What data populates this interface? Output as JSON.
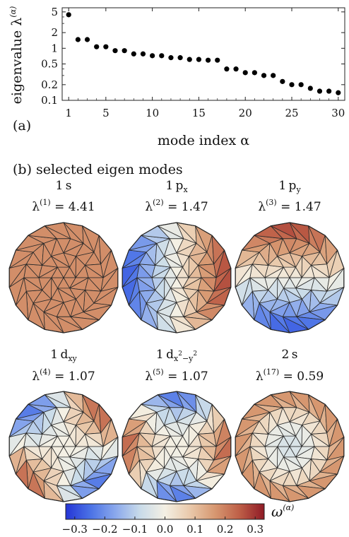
{
  "panel_a": {
    "label": "(a)",
    "chart_data": {
      "type": "scatter",
      "xlabel": "mode index α",
      "ylabel": "eigenvalue λ",
      "ylabel_sup": "(α)",
      "xlim": [
        0.3,
        30.7
      ],
      "ylim": [
        0.1,
        6
      ],
      "yscale": "log",
      "xticks": [
        1,
        5,
        10,
        15,
        20,
        25,
        30
      ],
      "yticks": [
        0.1,
        0.2,
        0.5,
        1,
        2,
        5
      ],
      "ytick_labels": [
        "0.1",
        "0.2",
        "0.5",
        "1",
        "2",
        "5"
      ],
      "x": [
        1,
        2,
        3,
        4,
        5,
        6,
        7,
        8,
        9,
        10,
        11,
        12,
        13,
        14,
        15,
        16,
        17,
        18,
        19,
        20,
        21,
        22,
        23,
        24,
        25,
        26,
        27,
        28,
        29,
        30
      ],
      "y": [
        4.41,
        1.47,
        1.47,
        1.07,
        1.07,
        0.9,
        0.9,
        0.78,
        0.78,
        0.72,
        0.72,
        0.66,
        0.66,
        0.61,
        0.61,
        0.59,
        0.59,
        0.4,
        0.4,
        0.34,
        0.34,
        0.3,
        0.3,
        0.23,
        0.2,
        0.2,
        0.17,
        0.15,
        0.15,
        0.14
      ],
      "grid": false,
      "frame": "box"
    }
  },
  "panel_b": {
    "title": "(b) selected eigen modes",
    "modes": [
      {
        "name": "1 s",
        "main": "1",
        "orb": "s",
        "sub": "",
        "sup": "",
        "lam_sup": "(1)",
        "lam_value": "4.41",
        "pattern": "uniform"
      },
      {
        "name": "1 p_x",
        "main": "1",
        "orb": "p",
        "sub": "x",
        "sup": "",
        "lam_sup": "(2)",
        "lam_value": "1.47",
        "pattern": "px"
      },
      {
        "name": "1 p_y",
        "main": "1",
        "orb": "p",
        "sub": "y",
        "sup": "",
        "lam_sup": "(3)",
        "lam_value": "1.47",
        "pattern": "py"
      },
      {
        "name": "1 d_xy",
        "main": "1",
        "orb": "d",
        "sub": "xy",
        "sup": "",
        "lam_sup": "(4)",
        "lam_value": "1.07",
        "pattern": "dxy"
      },
      {
        "name": "1 d_x2-y2",
        "main": "1",
        "orb": "d",
        "sub": "x",
        "sup": "2",
        "sub2": "−y",
        "sup2": "2",
        "lam_sup": "(5)",
        "lam_value": "1.07",
        "pattern": "dx2y2"
      },
      {
        "name": "2 s",
        "main": "2",
        "orb": "s",
        "sub": "",
        "sup": "",
        "lam_sup": "(17)",
        "lam_value": "0.59",
        "pattern": "radial"
      }
    ],
    "lam_symbol": "λ",
    "equals": "=",
    "colorbar": {
      "label": "ω",
      "label_sup": "(α)",
      "range": [
        -0.33,
        0.33
      ],
      "ticks": [
        "−0.3",
        "−0.2",
        "−0.1",
        "0.0",
        "0.1",
        "0.2",
        "0.3"
      ],
      "tick_values": [
        -0.3,
        -0.2,
        -0.1,
        0.0,
        0.1,
        0.2,
        0.3
      ],
      "colors": [
        "#2535d6",
        "#4b72e6",
        "#8aa8ec",
        "#c9dbe9",
        "#f4f0e4",
        "#e9c9ab",
        "#d79871",
        "#be5f47",
        "#8f1a26"
      ]
    }
  }
}
